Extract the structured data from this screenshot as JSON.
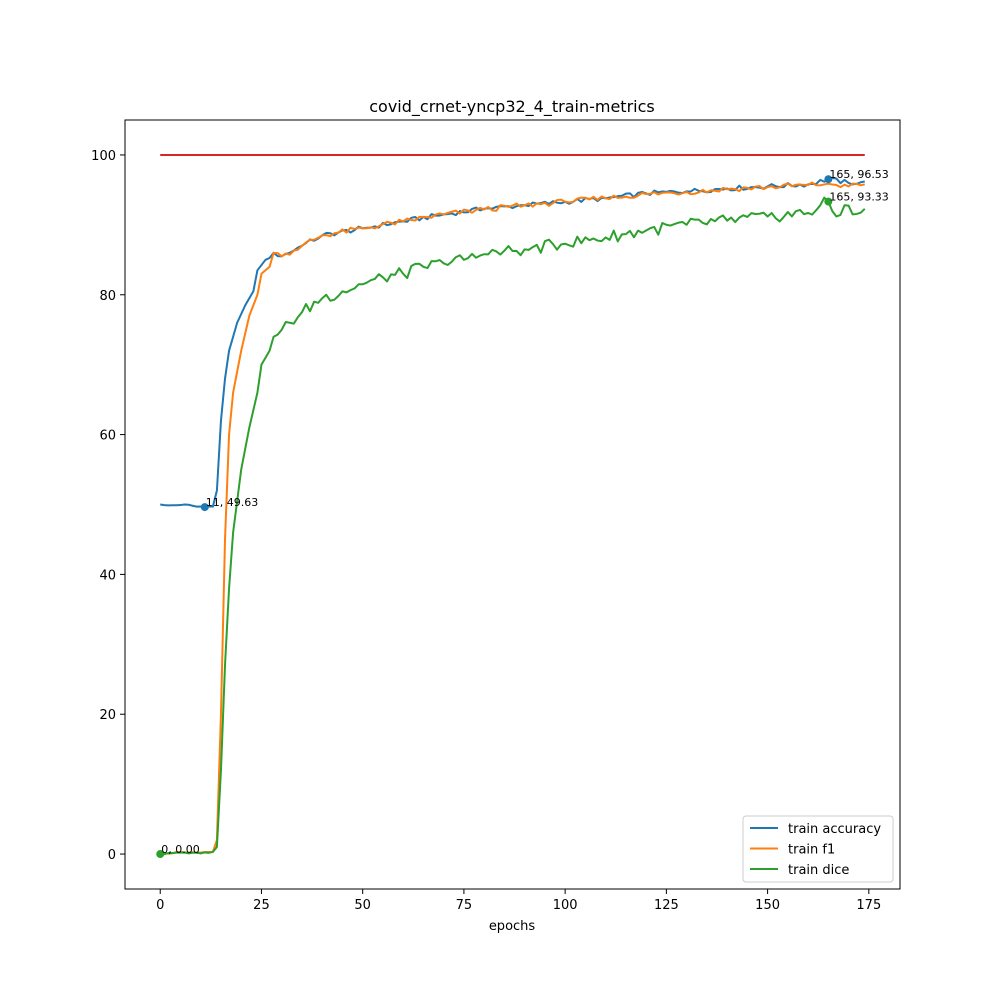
{
  "chart_data": {
    "type": "line",
    "title": "covid_crnet-yncp32_4_train-metrics",
    "xlabel": "epochs",
    "ylabel": "",
    "xlim": [
      -8.7,
      182.7
    ],
    "ylim": [
      -5,
      105
    ],
    "xticks": [
      0,
      25,
      50,
      75,
      100,
      125,
      150,
      175
    ],
    "yticks": [
      0,
      20,
      40,
      60,
      80,
      100
    ],
    "grid": false,
    "legend_position": "lower-right",
    "reference_line": {
      "x": [
        0,
        174
      ],
      "y": 100,
      "color": "#d62728"
    },
    "colors": {
      "train_accuracy": "#1f77b4",
      "train_f1": "#ff7f0e",
      "train_dice": "#2ca02c"
    },
    "series": [
      {
        "name": "train accuracy",
        "color": "#1f77b4",
        "keypoints": [
          [
            0,
            50.0
          ],
          [
            3,
            49.9
          ],
          [
            6,
            50.0
          ],
          [
            9,
            49.7
          ],
          [
            11,
            49.63
          ],
          [
            13,
            49.7
          ],
          [
            14,
            52
          ],
          [
            15,
            62
          ],
          [
            16,
            68
          ],
          [
            17,
            72
          ],
          [
            19,
            76
          ],
          [
            21,
            78.5
          ],
          [
            23,
            80.5
          ],
          [
            24,
            83.5
          ],
          [
            26,
            85
          ],
          [
            28,
            86
          ],
          [
            30,
            85.5
          ],
          [
            35,
            87
          ],
          [
            40,
            88.5
          ],
          [
            50,
            89.5
          ],
          [
            60,
            90.5
          ],
          [
            70,
            91.5
          ],
          [
            80,
            92.3
          ],
          [
            90,
            92.8
          ],
          [
            100,
            93.3
          ],
          [
            110,
            93.8
          ],
          [
            120,
            94.5
          ],
          [
            130,
            94.8
          ],
          [
            140,
            95.2
          ],
          [
            150,
            95.5
          ],
          [
            160,
            95.8
          ],
          [
            165,
            96.53
          ],
          [
            170,
            96.0
          ],
          [
            174,
            96.2
          ]
        ],
        "annotation": {
          "x": 165,
          "y": 96.53,
          "label": "165, 96.53"
        },
        "marker_min": {
          "x": 11,
          "y": 49.63,
          "label": "11, 49.63"
        }
      },
      {
        "name": "train f1",
        "color": "#ff7f0e",
        "keypoints": [
          [
            0,
            0.0
          ],
          [
            5,
            0.3
          ],
          [
            10,
            0.2
          ],
          [
            13,
            0.3
          ],
          [
            14,
            2
          ],
          [
            15,
            20
          ],
          [
            16,
            45
          ],
          [
            17,
            60
          ],
          [
            18,
            66
          ],
          [
            20,
            72
          ],
          [
            22,
            77
          ],
          [
            24,
            80
          ],
          [
            25,
            83
          ],
          [
            27,
            84
          ],
          [
            28,
            86
          ],
          [
            30,
            85.5
          ],
          [
            35,
            87
          ],
          [
            40,
            88.5
          ],
          [
            50,
            89.5
          ],
          [
            60,
            90.5
          ],
          [
            70,
            91.5
          ],
          [
            80,
            92.2
          ],
          [
            90,
            92.8
          ],
          [
            100,
            93.3
          ],
          [
            110,
            93.8
          ],
          [
            120,
            94.4
          ],
          [
            130,
            94.7
          ],
          [
            140,
            95.1
          ],
          [
            150,
            95.4
          ],
          [
            160,
            95.7
          ],
          [
            165,
            95.9
          ],
          [
            170,
            95.5
          ],
          [
            174,
            95.8
          ]
        ]
      },
      {
        "name": "train dice",
        "color": "#2ca02c",
        "keypoints": [
          [
            0,
            0.0
          ],
          [
            5,
            0.2
          ],
          [
            10,
            0.1
          ],
          [
            13,
            0.3
          ],
          [
            14,
            1
          ],
          [
            15,
            12
          ],
          [
            16,
            27
          ],
          [
            17,
            38
          ],
          [
            18,
            46
          ],
          [
            20,
            55
          ],
          [
            22,
            61
          ],
          [
            24,
            66
          ],
          [
            25,
            70
          ],
          [
            27,
            72
          ],
          [
            28,
            74
          ],
          [
            30,
            75
          ],
          [
            35,
            77.5
          ],
          [
            40,
            79.5
          ],
          [
            45,
            80.5
          ],
          [
            50,
            81.5
          ],
          [
            55,
            82.5
          ],
          [
            60,
            83
          ],
          [
            65,
            84
          ],
          [
            70,
            84.5
          ],
          [
            75,
            85
          ],
          [
            80,
            85.8
          ],
          [
            90,
            86.5
          ],
          [
            100,
            87.3
          ],
          [
            110,
            88.2
          ],
          [
            120,
            89.2
          ],
          [
            130,
            90
          ],
          [
            140,
            90.6
          ],
          [
            150,
            91.2
          ],
          [
            160,
            91.7
          ],
          [
            165,
            93.33
          ],
          [
            167,
            91.2
          ],
          [
            169,
            92.8
          ],
          [
            171,
            91.5
          ],
          [
            174,
            92.3
          ]
        ],
        "annotation": {
          "x": 165,
          "y": 93.33,
          "label": "165, 93.33"
        }
      }
    ],
    "extra_annotation": {
      "x": 0,
      "y": 0.0,
      "label": "0, 0.00",
      "color": "#2ca02c"
    },
    "n_epochs": 175
  }
}
